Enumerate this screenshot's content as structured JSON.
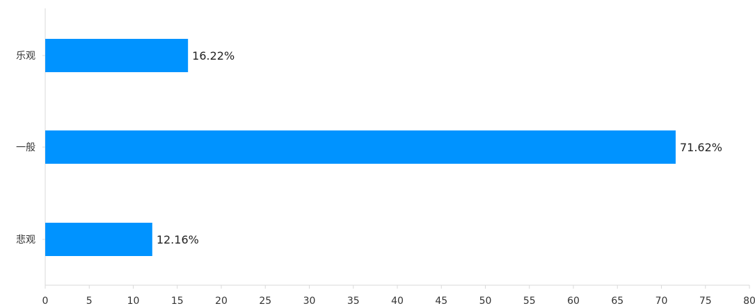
{
  "chart_data": {
    "type": "bar",
    "orientation": "horizontal",
    "categories": [
      "乐观",
      "一般",
      "悲观"
    ],
    "values": [
      16.22,
      71.62,
      12.16
    ],
    "value_labels": [
      "16.22%",
      "71.62%",
      "12.16%"
    ],
    "xlim": [
      0,
      80
    ],
    "x_ticks": [
      0,
      5,
      10,
      15,
      20,
      25,
      30,
      35,
      40,
      45,
      50,
      55,
      60,
      65,
      70,
      75,
      80
    ],
    "grid": false,
    "legend": "none",
    "colors": {
      "bar": "#0093FF",
      "axis": "#D9D9D9",
      "text": "#333333"
    }
  }
}
